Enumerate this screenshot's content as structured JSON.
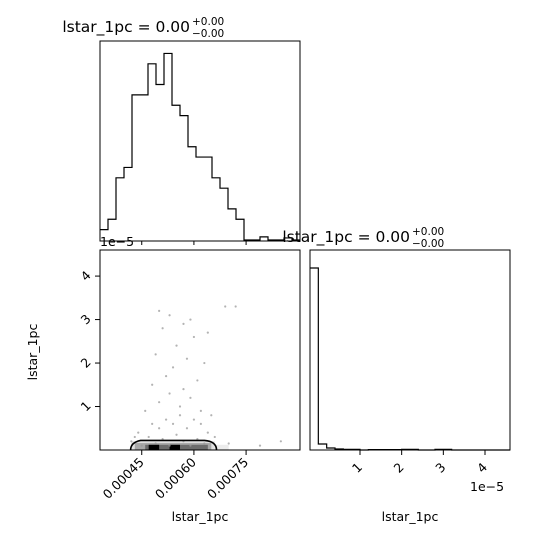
{
  "chart_data": [
    {
      "panel": "top-left",
      "type": "histogram-step",
      "title": {
        "text": "lstar_1pc = 0.00",
        "sup": "+0.00",
        "sub": "−0.00"
      },
      "variable": "lstar_1pc",
      "bin_edges": [
        0.00033,
        0.000353,
        0.000376,
        0.000399,
        0.000422,
        0.000445,
        0.000468,
        0.000491,
        0.000514,
        0.000537,
        0.00056,
        0.000583,
        0.000606,
        0.000629,
        0.000652,
        0.000675,
        0.000698,
        0.000721,
        0.000744,
        0.000767,
        0.00079,
        0.000813,
        0.000836,
        0.000859,
        0.000882,
        0.000905
      ],
      "counts": [
        1,
        2,
        6,
        7,
        14,
        14,
        17,
        15,
        18,
        13,
        12,
        9,
        8,
        8,
        6,
        5,
        3,
        2,
        0,
        0,
        0.3,
        0,
        0,
        0.2,
        0
      ],
      "xlim": [
        0.00033,
        0.000905
      ],
      "ylim": [
        0,
        19.2
      ],
      "ticks_visible": false
    },
    {
      "panel": "bottom-left",
      "type": "scatter-density",
      "x_variable": "lstar_1pc",
      "y_variable": "lstar_1pc",
      "xlabel": "lstar_1pc",
      "ylabel": "lstar_1pc",
      "xlim": [
        0.00033,
        0.000905
      ],
      "ylim": [
        0,
        4.6e-05
      ],
      "x_ticks": [
        {
          "value": 0.00045,
          "label": "0.00045"
        },
        {
          "value": 0.0006,
          "label": "0.00060"
        },
        {
          "value": 0.00075,
          "label": "0.00075"
        }
      ],
      "y_ticks": [
        {
          "value": 1e-05,
          "label": "1"
        },
        {
          "value": 2e-05,
          "label": "2"
        },
        {
          "value": 3e-05,
          "label": "3"
        },
        {
          "value": 4e-05,
          "label": "4"
        }
      ],
      "y_offset": "1e−5",
      "points": [
        {
          "x": 0.00042,
          "y": 2e-06
        },
        {
          "x": 0.00045,
          "y": 1e-06
        },
        {
          "x": 0.00047,
          "y": 3e-06
        },
        {
          "x": 0.00049,
          "y": 1.5e-06
        },
        {
          "x": 0.00051,
          "y": 2.5e-06
        },
        {
          "x": 0.00053,
          "y": 1e-06
        },
        {
          "x": 0.00055,
          "y": 3.5e-06
        },
        {
          "x": 0.00057,
          "y": 2e-06
        },
        {
          "x": 0.00059,
          "y": 1e-06
        },
        {
          "x": 0.00061,
          "y": 2.5e-06
        },
        {
          "x": 0.00063,
          "y": 1.5e-06
        },
        {
          "x": 0.00044,
          "y": 4e-06
        },
        {
          "x": 0.00048,
          "y": 6e-06
        },
        {
          "x": 0.0005,
          "y": 5e-06
        },
        {
          "x": 0.00052,
          "y": 7e-06
        },
        {
          "x": 0.00054,
          "y": 6e-06
        },
        {
          "x": 0.00056,
          "y": 8e-06
        },
        {
          "x": 0.00058,
          "y": 5e-06
        },
        {
          "x": 0.0006,
          "y": 7e-06
        },
        {
          "x": 0.00062,
          "y": 6e-06
        },
        {
          "x": 0.00064,
          "y": 4e-06
        },
        {
          "x": 0.00046,
          "y": 9e-06
        },
        {
          "x": 0.0005,
          "y": 1.1e-05
        },
        {
          "x": 0.00053,
          "y": 1.3e-05
        },
        {
          "x": 0.00056,
          "y": 1e-05
        },
        {
          "x": 0.00059,
          "y": 1.2e-05
        },
        {
          "x": 0.00062,
          "y": 9e-06
        },
        {
          "x": 0.00065,
          "y": 8e-06
        },
        {
          "x": 0.00048,
          "y": 1.5e-05
        },
        {
          "x": 0.00052,
          "y": 1.7e-05
        },
        {
          "x": 0.00057,
          "y": 1.4e-05
        },
        {
          "x": 0.00061,
          "y": 1.6e-05
        },
        {
          "x": 0.00054,
          "y": 1.9e-05
        },
        {
          "x": 0.00058,
          "y": 2.1e-05
        },
        {
          "x": 0.00049,
          "y": 2.2e-05
        },
        {
          "x": 0.00063,
          "y": 2e-05
        },
        {
          "x": 0.00055,
          "y": 2.4e-05
        },
        {
          "x": 0.0006,
          "y": 2.6e-05
        },
        {
          "x": 0.00051,
          "y": 2.8e-05
        },
        {
          "x": 0.00057,
          "y": 2.9e-05
        },
        {
          "x": 0.00064,
          "y": 2.7e-05
        },
        {
          "x": 0.00053,
          "y": 3.1e-05
        },
        {
          "x": 0.0005,
          "y": 3.2e-05
        },
        {
          "x": 0.00059,
          "y": 3e-05
        },
        {
          "x": 0.00069,
          "y": 3.3e-05
        },
        {
          "x": 0.00072,
          "y": 3.3e-05
        },
        {
          "x": 0.00043,
          "y": 3e-06
        },
        {
          "x": 0.00066,
          "y": 3e-06
        },
        {
          "x": 0.0007,
          "y": 1.5e-06
        },
        {
          "x": 0.00079,
          "y": 1e-06
        },
        {
          "x": 0.00085,
          "y": 2e-06
        }
      ],
      "density_blocks": [
        {
          "x0": 0.00042,
          "x1": 0.00066,
          "y0": 0,
          "y1": 2e-06,
          "shade": "#e0e0e0"
        },
        {
          "x0": 0.00043,
          "x1": 0.00065,
          "y0": 0,
          "y1": 1.6e-06,
          "shade": "#a8a8a8"
        },
        {
          "x0": 0.00046,
          "x1": 0.00064,
          "y0": 0,
          "y1": 1.2e-06,
          "shade": "#6c6c6c"
        },
        {
          "x0": 0.00047,
          "x1": 0.0005,
          "y0": 0,
          "y1": 1.2e-06,
          "shade": "#000000"
        },
        {
          "x0": 0.00053,
          "x1": 0.00056,
          "y0": 0,
          "y1": 1.2e-06,
          "shade": "#000000"
        },
        {
          "x0": 0.00066,
          "x1": 0.0007,
          "y0": 0,
          "y1": 1.2e-06,
          "shade": "#ececec"
        }
      ]
    },
    {
      "panel": "bottom-right",
      "type": "histogram-step",
      "title": {
        "text": "lstar_1pc = 0.00",
        "sup": "+0.00",
        "sub": "−0.00"
      },
      "variable": "lstar_1pc",
      "xlabel": "lstar_1pc",
      "xlim": [
        -2e-06,
        4.6e-05
      ],
      "ylim": [
        0,
        100
      ],
      "x_ticks": [
        {
          "value": 1e-05,
          "label": "1"
        },
        {
          "value": 2e-05,
          "label": "2"
        },
        {
          "value": 3e-05,
          "label": "3"
        },
        {
          "value": 4e-05,
          "label": "4"
        }
      ],
      "x_offset": "1e−5",
      "bin_edges": [
        -2e-06,
        0.0,
        2e-06,
        4e-06,
        6e-06,
        8e-06,
        1e-05,
        1.2e-05,
        1.4e-05,
        1.6e-05,
        1.8e-05,
        2e-05,
        2.2e-05,
        2.4e-05,
        2.6e-05,
        2.8e-05,
        3e-05,
        3.2e-05,
        3.4e-05,
        3.6e-05,
        3.8e-05,
        4e-05,
        4.2e-05,
        4.4e-05,
        4.6e-05
      ],
      "counts": [
        91,
        3,
        1,
        0.5,
        0.3,
        0.3,
        0,
        0.2,
        0.2,
        0.2,
        0.2,
        0.3,
        0.3,
        0,
        0,
        0.3,
        0.3,
        0,
        0,
        0,
        0,
        0,
        0,
        0
      ]
    }
  ]
}
